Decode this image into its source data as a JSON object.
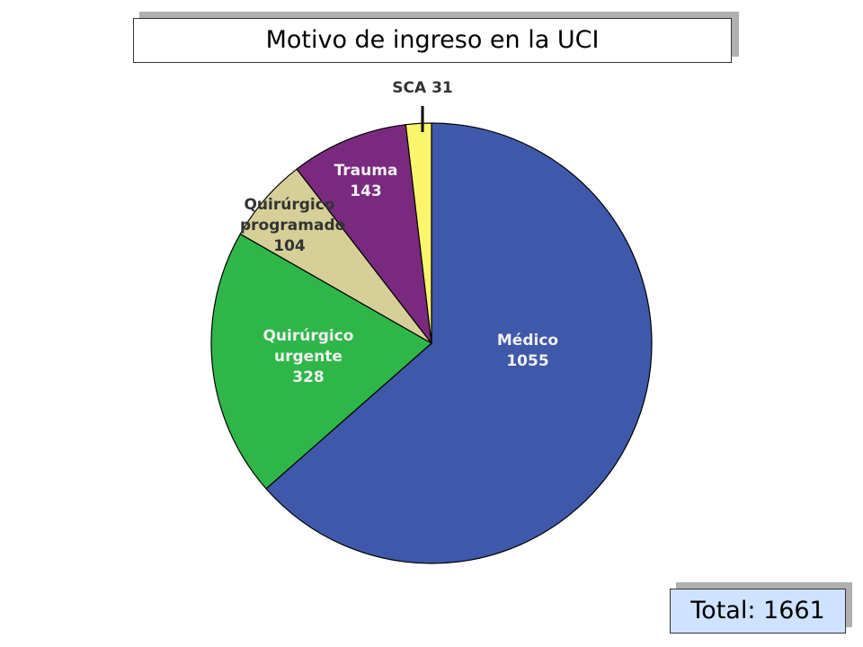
{
  "chart_data": {
    "type": "pie",
    "title": "Motivo de ingreso en la UCI",
    "categories": [
      "Médico",
      "Quirúrgico urgente",
      "Quirúrgico programado",
      "Trauma",
      "SCA"
    ],
    "values": [
      1055,
      328,
      104,
      143,
      31
    ],
    "colors": [
      "#3f58a9",
      "#2fb649",
      "#d6cf98",
      "#7a2a7e",
      "#fbf56c"
    ],
    "total_label": "Total:",
    "total": 1661
  }
}
